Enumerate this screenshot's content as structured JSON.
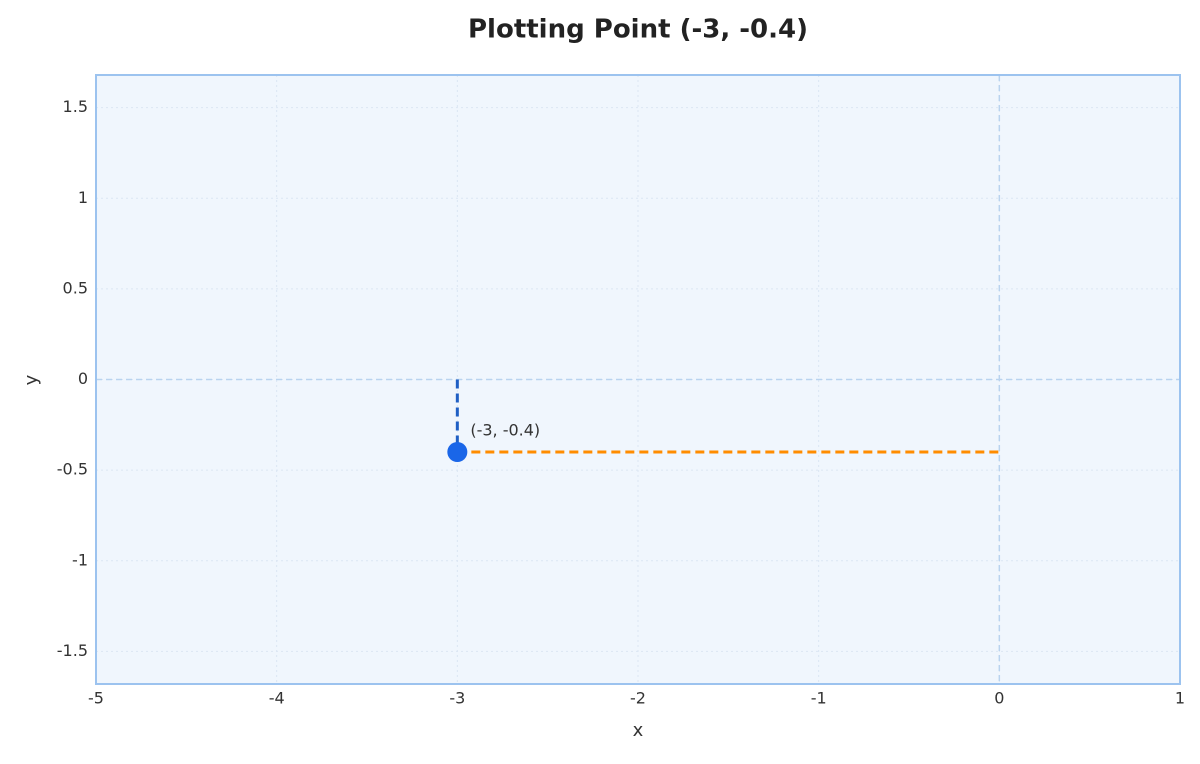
{
  "chart_data": {
    "type": "scatter",
    "title": "Plotting Point (-3, -0.4)",
    "xlabel": "x",
    "ylabel": "y",
    "x": [
      -3
    ],
    "values": [
      -0.4
    ],
    "point_labels": [
      "(-3, -0.4)"
    ],
    "color": "#1a66e8",
    "guide_colors": {
      "vertical": "#1f5fc4",
      "horizontal": "#ff8c00"
    },
    "xlim": [
      -5,
      1
    ],
    "xticks": [
      -5,
      -4,
      -3,
      -2,
      -1,
      0,
      1
    ],
    "ylim": [
      -1.68,
      1.68
    ],
    "yticks": [
      -1.5,
      -1,
      -0.5,
      0,
      0.5,
      1,
      1.5
    ],
    "grid": true
  }
}
